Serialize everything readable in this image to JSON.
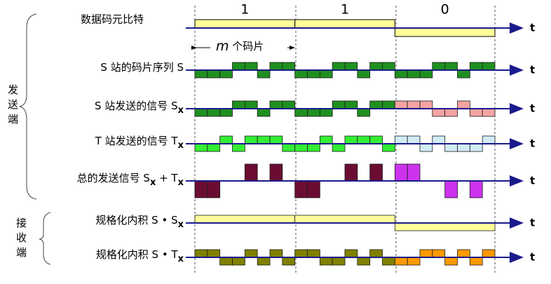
{
  "header": {
    "bits_label": "数据码元比特",
    "chips_label": [
      "m",
      " 个码片"
    ],
    "send_side": "发送端",
    "recv_side": "接收端",
    "axis_label": "t"
  },
  "bits": [
    1,
    1,
    0
  ],
  "rows": [
    {
      "label": [
        "S 站的码片序列 S"
      ],
      "colors": [
        "#1f8f1f",
        "#1f8f1f",
        "#1f8f1f"
      ],
      "amp": 11,
      "chips": [
        -1,
        -1,
        -1,
        1,
        1,
        -1,
        1,
        1,
        -1,
        -1,
        -1,
        1,
        1,
        -1,
        1,
        1,
        -1,
        -1,
        -1,
        1,
        1,
        -1,
        1,
        1
      ]
    },
    {
      "label": [
        "S 站发送的信号 S",
        "x"
      ],
      "colors": [
        "#1f8f1f",
        "#1f8f1f",
        "#f4a3a3"
      ],
      "amp": 11,
      "chips": [
        -1,
        -1,
        -1,
        1,
        1,
        -1,
        1,
        1,
        -1,
        -1,
        -1,
        1,
        1,
        -1,
        1,
        1,
        1,
        1,
        1,
        -1,
        -1,
        1,
        -1,
        -1
      ]
    },
    {
      "label": [
        "T 站发送的信号 T",
        "x"
      ],
      "colors": [
        "#33ee33",
        "#33ee33",
        "#d2ecf7"
      ],
      "amp": 11,
      "chips": [
        -1,
        -1,
        1,
        -1,
        1,
        1,
        1,
        -1,
        -1,
        -1,
        1,
        -1,
        1,
        1,
        1,
        -1,
        1,
        1,
        -1,
        1,
        -1,
        -1,
        -1,
        1
      ]
    },
    {
      "label": [
        "总的发送信号 S",
        "x",
        " + T",
        "x"
      ],
      "colors": [
        "#6b0d33",
        "#6b0d33",
        "#cc33ee"
      ],
      "amp": 12,
      "chips": [
        -2,
        -2,
        0,
        0,
        2,
        0,
        2,
        0,
        -2,
        -2,
        0,
        0,
        2,
        0,
        2,
        0,
        2,
        2,
        0,
        0,
        -2,
        0,
        -2,
        0
      ]
    },
    {
      "label": [
        "规格化内积 S • S",
        "x"
      ],
      "colors": [
        "#ffff99",
        "#ffff99",
        "#ffff99"
      ],
      "amp": 11,
      "per_bit": [
        1,
        1,
        -1
      ]
    },
    {
      "label": [
        "规格化内积 S • T",
        "x"
      ],
      "colors": [
        "#808000",
        "#808000",
        "#ff9900"
      ],
      "amp": 11,
      "chips": [
        1,
        1,
        -1,
        -1,
        1,
        -1,
        1,
        -1,
        1,
        1,
        -1,
        -1,
        1,
        -1,
        1,
        -1,
        -1,
        -1,
        1,
        1,
        -1,
        1,
        -1,
        1
      ]
    }
  ]
}
